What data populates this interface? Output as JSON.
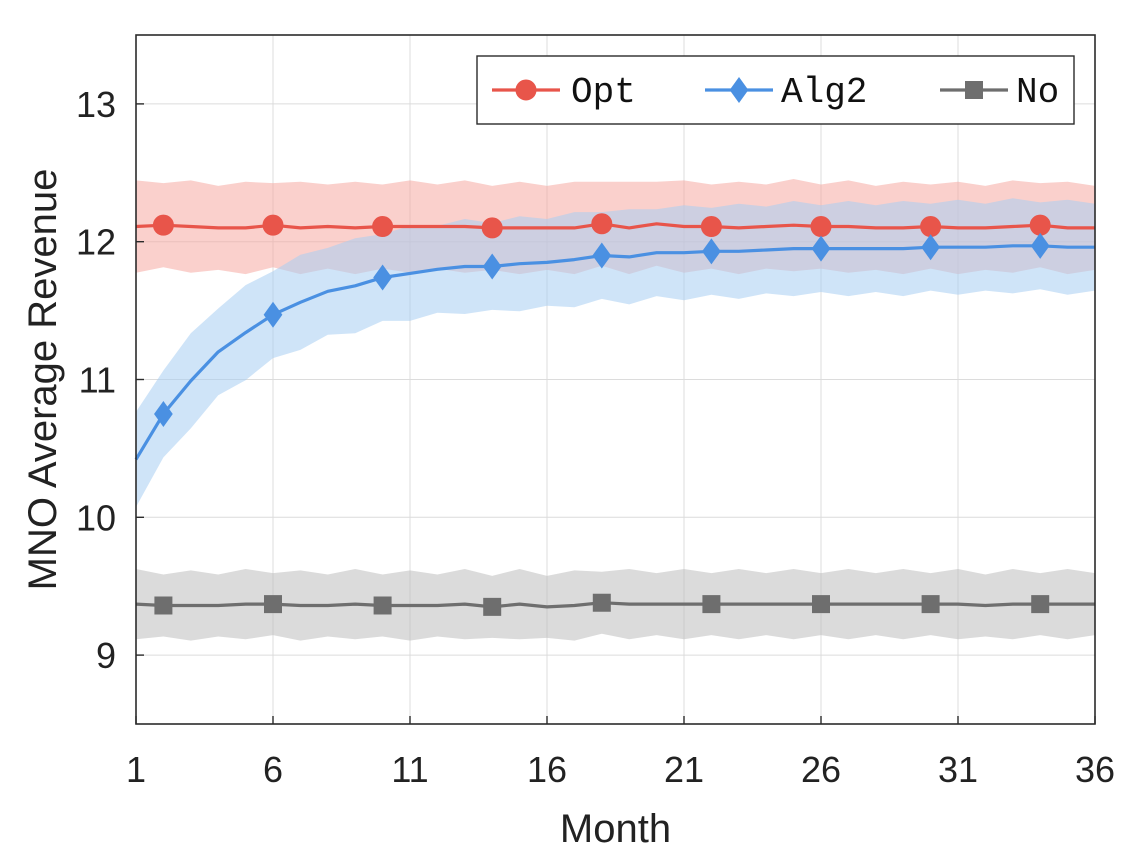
{
  "chart_data": {
    "type": "line",
    "xlabel": "Month",
    "ylabel": "MNO Average Revenue",
    "xlim": [
      1,
      36
    ],
    "ylim": [
      8.5,
      13.5
    ],
    "xticks": [
      "1",
      "6",
      "11",
      "16",
      "21",
      "26",
      "31",
      "36"
    ],
    "yticks": [
      "9",
      "10",
      "11",
      "12",
      "13"
    ],
    "grid": true,
    "legend": {
      "position": "top-right",
      "orientation": "horizontal"
    },
    "x": [
      1,
      2,
      3,
      4,
      5,
      6,
      7,
      8,
      9,
      10,
      11,
      12,
      13,
      14,
      15,
      16,
      17,
      18,
      19,
      20,
      21,
      22,
      23,
      24,
      25,
      26,
      27,
      28,
      29,
      30,
      31,
      32,
      33,
      34,
      35,
      36
    ],
    "series": [
      {
        "name": "Opt",
        "color": "#e8554a",
        "band_color": "#f5a9a3",
        "marker": "circle",
        "marker_x": [
          2,
          6,
          10,
          14,
          18,
          22,
          26,
          30,
          34
        ],
        "values": [
          12.11,
          12.12,
          12.11,
          12.1,
          12.1,
          12.12,
          12.1,
          12.11,
          12.1,
          12.11,
          12.11,
          12.11,
          12.11,
          12.1,
          12.1,
          12.1,
          12.1,
          12.13,
          12.1,
          12.13,
          12.11,
          12.11,
          12.1,
          12.11,
          12.12,
          12.11,
          12.11,
          12.1,
          12.1,
          12.11,
          12.1,
          12.1,
          12.11,
          12.12,
          12.1,
          12.1
        ],
        "band": 0.32
      },
      {
        "name": "Alg2",
        "color": "#4a90e2",
        "band_color": "#a8cdf3",
        "marker": "diamond",
        "marker_x": [
          2,
          6,
          10,
          14,
          18,
          22,
          26,
          30,
          34
        ],
        "values": [
          10.42,
          10.75,
          10.99,
          11.2,
          11.34,
          11.47,
          11.56,
          11.64,
          11.68,
          11.74,
          11.77,
          11.8,
          11.82,
          11.82,
          11.84,
          11.85,
          11.87,
          11.9,
          11.89,
          11.92,
          11.92,
          11.93,
          11.93,
          11.94,
          11.95,
          11.95,
          11.95,
          11.95,
          11.95,
          11.96,
          11.96,
          11.96,
          11.97,
          11.97,
          11.96,
          11.96
        ],
        "band": 0.33
      },
      {
        "name": "No",
        "color": "#6e6e6e",
        "band_color": "#bdbdbd",
        "marker": "square",
        "marker_x": [
          2,
          6,
          10,
          14,
          18,
          22,
          26,
          30,
          34
        ],
        "values": [
          9.37,
          9.36,
          9.36,
          9.36,
          9.37,
          9.37,
          9.36,
          9.36,
          9.37,
          9.36,
          9.36,
          9.36,
          9.37,
          9.35,
          9.37,
          9.35,
          9.36,
          9.38,
          9.37,
          9.37,
          9.37,
          9.37,
          9.37,
          9.37,
          9.37,
          9.37,
          9.37,
          9.37,
          9.37,
          9.37,
          9.37,
          9.36,
          9.37,
          9.37,
          9.37,
          9.37
        ],
        "band": 0.24
      }
    ]
  }
}
